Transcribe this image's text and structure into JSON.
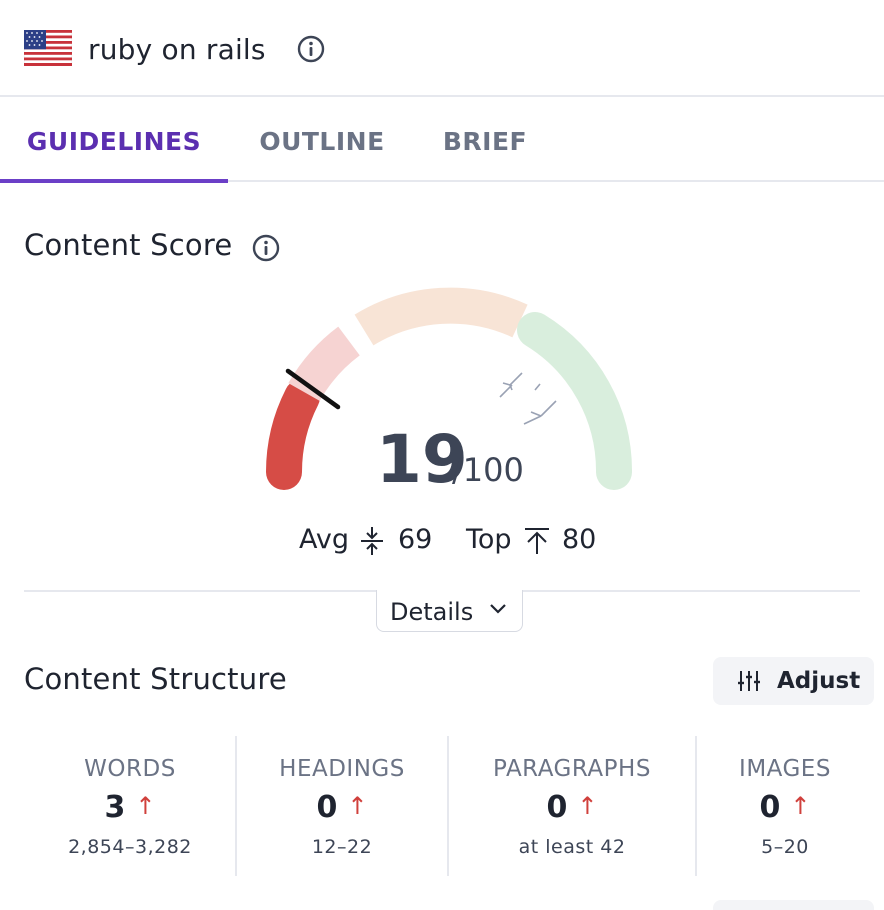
{
  "header": {
    "query": "ruby on rails",
    "flag_icon": "us-flag-icon",
    "info_icon": "info-icon"
  },
  "tabs": [
    {
      "label": "GUIDELINES",
      "active": true
    },
    {
      "label": "OUTLINE",
      "active": false
    },
    {
      "label": "BRIEF",
      "active": false
    }
  ],
  "content_score": {
    "title": "Content Score",
    "score": "19",
    "max": "/100",
    "avg_label": "Avg",
    "avg_value": "69",
    "top_label": "Top",
    "top_value": "80",
    "details_label": "Details",
    "colors": {
      "low": "#d64c46",
      "low_light": "#f6d3d2",
      "mid_light": "#f8e4d6",
      "high_light": "#d9eedd"
    }
  },
  "content_structure": {
    "title": "Content Structure",
    "adjust_label": "Adjust",
    "metrics": [
      {
        "label": "WORDS",
        "value": "3",
        "range": "2,854–3,282"
      },
      {
        "label": "HEADINGS",
        "value": "0",
        "range": "12–22"
      },
      {
        "label": "PARAGRAPHS",
        "value": "0",
        "range": "at least 42"
      },
      {
        "label": "IMAGES",
        "value": "0",
        "range": "5–20"
      }
    ],
    "arrow_glyph": "↑"
  }
}
